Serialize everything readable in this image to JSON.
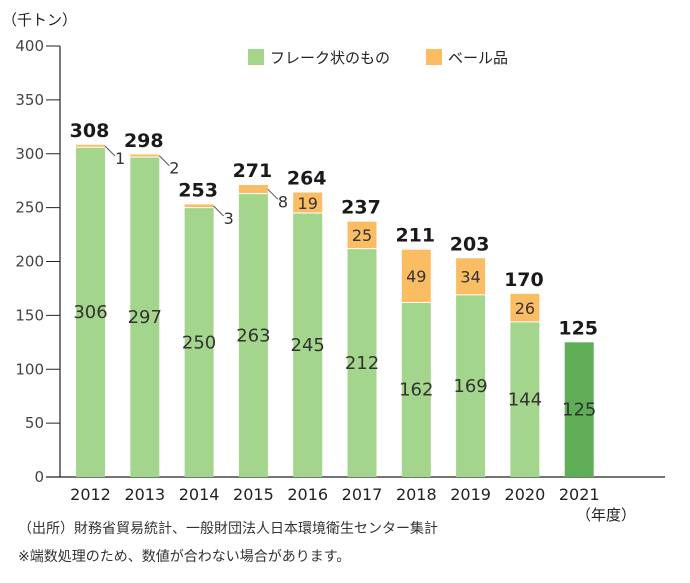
{
  "colors": {
    "flake": "#a4d58c",
    "bale": "#fbbd63",
    "highlight": "#5fad56",
    "axis": "#222222",
    "separator": "#ffffff"
  },
  "chart_data": {
    "type": "bar",
    "stacked": true,
    "unit": "（千トン）",
    "categories": [
      "2012",
      "2013",
      "2014",
      "2015",
      "2016",
      "2017",
      "2018",
      "2019",
      "2020",
      "2021"
    ],
    "category_suffix": "（年度）",
    "ylim": [
      0,
      400
    ],
    "yticks": [
      0,
      50,
      100,
      150,
      200,
      250,
      300,
      350,
      400
    ],
    "grid": false,
    "legend_position": "top",
    "series": [
      {
        "name": "フレーク状のもの",
        "values": [
          306,
          297,
          250,
          263,
          245,
          212,
          162,
          169,
          144,
          125
        ]
      },
      {
        "name": "ベール品",
        "values": [
          1,
          2,
          3,
          8,
          19,
          25,
          49,
          34,
          26,
          null
        ]
      }
    ],
    "totals": [
      308,
      298,
      253,
      271,
      264,
      237,
      211,
      203,
      170,
      125
    ]
  },
  "notes": {
    "source": "（出所）財務省貿易統計、一般財団法人日本環境衛生センター集計",
    "rounding": "※端数処理のため、数値が合わない場合があります。"
  }
}
